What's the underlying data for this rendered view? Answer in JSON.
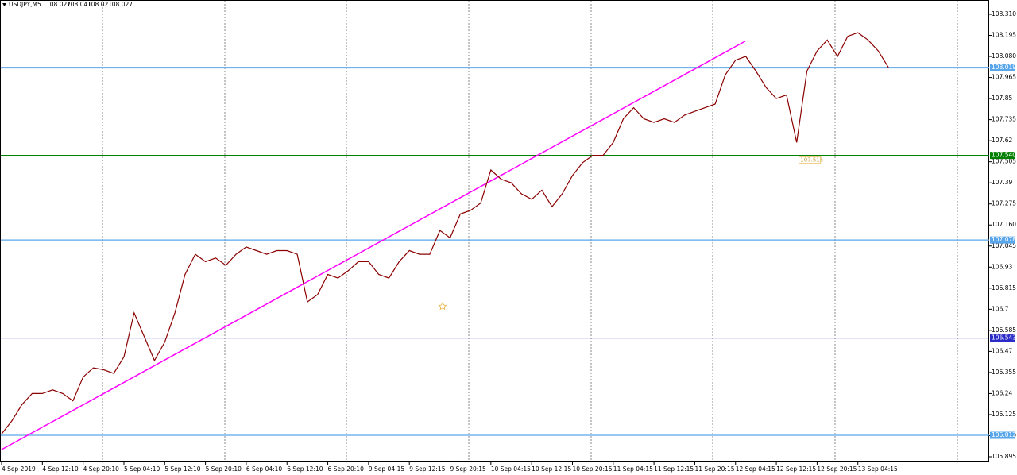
{
  "chart_data": {
    "type": "line",
    "title": "USDJPY,M5",
    "ohlc": [
      108.027,
      108.041,
      108.021,
      108.027
    ],
    "categories": [
      "4 Sep 2019",
      null,
      null,
      null,
      "4 Sep 12:10",
      null,
      null,
      null,
      "4 Sep 20:10",
      null,
      null,
      null,
      "5 Sep 04:10",
      null,
      null,
      null,
      "5 Sep 12:10",
      null,
      null,
      null,
      "5 Sep 20:10",
      null,
      null,
      null,
      "6 Sep 04:10",
      null,
      null,
      null,
      "6 Sep 12:10",
      null,
      null,
      null,
      "6 Sep 20:10",
      null,
      null,
      null,
      "9 Sep 04:15",
      null,
      null,
      null,
      "9 Sep 12:15",
      null,
      null,
      null,
      "9 Sep 20:15",
      null,
      null,
      null,
      "10 Sep 04:15",
      null,
      null,
      null,
      "10 Sep 12:15",
      null,
      null,
      null,
      "10 Sep 20:15",
      null,
      null,
      null,
      "11 Sep 04:15",
      null,
      null,
      null,
      "11 Sep 12:15",
      null,
      null,
      null,
      "11 Sep 20:15",
      null,
      null,
      null,
      "12 Sep 04:15",
      null,
      null,
      null,
      "12 Sep 12:15",
      null,
      null,
      null,
      "12 Sep 20:15",
      null,
      null,
      null,
      "13 Sep 04:15",
      null,
      null,
      null
    ],
    "series": [
      {
        "name": "USDJPY",
        "color": "#8b0000",
        "values": [
          106.02,
          106.09,
          106.18,
          106.24,
          106.24,
          106.26,
          106.24,
          106.2,
          106.33,
          106.38,
          106.37,
          106.35,
          106.44,
          106.68,
          106.55,
          106.42,
          106.52,
          106.68,
          106.89,
          107.0,
          106.96,
          106.98,
          106.94,
          107.0,
          107.04,
          107.02,
          107.0,
          107.02,
          107.02,
          107.0,
          106.74,
          106.78,
          106.89,
          106.87,
          106.91,
          106.96,
          106.96,
          106.89,
          106.87,
          106.96,
          107.02,
          107.0,
          107.0,
          107.13,
          107.09,
          107.22,
          107.24,
          107.28,
          107.46,
          107.41,
          107.39,
          107.33,
          107.3,
          107.35,
          107.26,
          107.33,
          107.43,
          107.5,
          107.54,
          107.54,
          107.61,
          107.74,
          107.8,
          107.74,
          107.72,
          107.74,
          107.72,
          107.76,
          107.78,
          107.8,
          107.82,
          107.98,
          108.06,
          108.08,
          108.0,
          107.91,
          107.85,
          107.87,
          107.61,
          108.0,
          108.11,
          108.17,
          108.08,
          108.19,
          108.21,
          108.17,
          108.11,
          108.02
        ]
      }
    ],
    "ylim": [
      105.895,
      108.31
    ],
    "yticks": [
      105.895,
      {
        "value": 106.01,
        "label": "106.010"
      },
      106.125,
      106.24,
      106.355,
      106.47,
      106.585,
      106.7,
      106.815,
      106.93,
      107.045,
      {
        "value": 107.16,
        "label": "107.160"
      },
      107.275,
      107.39,
      107.505,
      107.62,
      107.735,
      107.85,
      107.965,
      {
        "value": 108.08,
        "label": "108.080"
      },
      108.195,
      {
        "value": 108.31,
        "label": "108.310"
      }
    ],
    "levels": [
      {
        "value": 108.019,
        "label": "108.019",
        "color": "#5aa6ea"
      },
      {
        "value": 107.54,
        "label": "107.540",
        "color": "#008000"
      },
      {
        "value": 107.078,
        "label": "107.078",
        "color": "#5aa6ea"
      },
      {
        "value": 106.543,
        "label": "106.543",
        "color": "#2b2bc8"
      },
      {
        "value": 106.012,
        "label": "106.012",
        "color": "#5aa6ea"
      }
    ],
    "trendline": {
      "start": [
        0,
        105.934
      ],
      "end": [
        72.95,
        108.163
      ],
      "color": "#ff00ff"
    },
    "annotations": [
      {
        "text": "107.515",
        "x": 78,
        "y": 107.515
      }
    ]
  }
}
